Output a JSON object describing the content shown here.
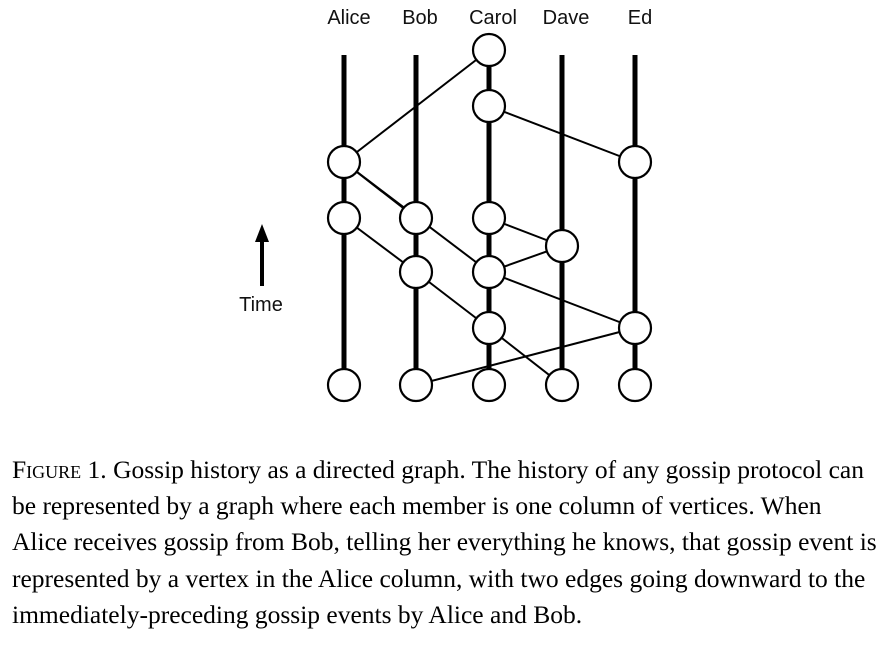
{
  "diagram": {
    "members": [
      "Alice",
      "Bob",
      "Carol",
      "Dave",
      "Ed"
    ],
    "time_label": "Time",
    "colors": {
      "stroke": "#000000",
      "vertex_fill": "#ffffff"
    },
    "time_direction": "upward"
  },
  "caption": {
    "label": "Figure 1.",
    "text": "Gossip history as a directed graph. The history of any gossip protocol can be represented by a graph where each member is one column of vertices. When Alice receives gossip from Bob, telling her everything he knows, that gossip event is represented by a vertex in the Alice column, with two edges going downward to the immediately-preceding gossip events by Alice and Bob."
  }
}
